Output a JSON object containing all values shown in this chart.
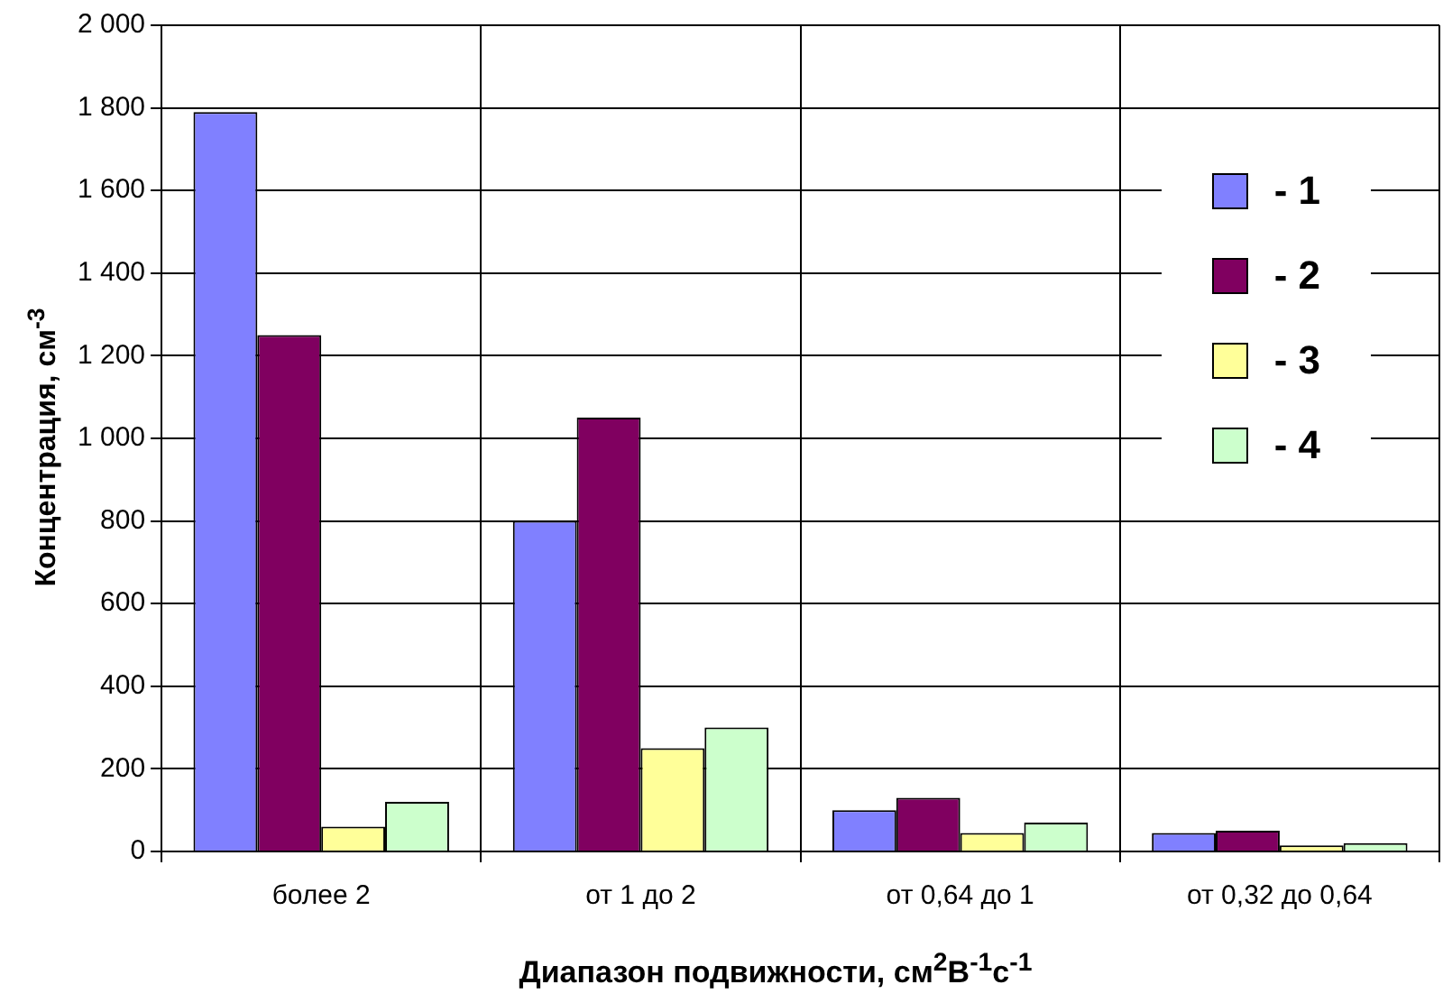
{
  "chart_data": {
    "type": "bar",
    "xlabel": "Диапазон подвижности, см$^{2}$В$^{-1}$с$^{-1}$",
    "ylabel": "Концентрация, см$^{-3}$",
    "categories": [
      "более 2",
      "от 1 до 2",
      "от 0,64 до 1",
      "от 0,32 до 0,64"
    ],
    "series": [
      {
        "name": "- 1",
        "color": "#8080ff",
        "values": [
          1790,
          800,
          100,
          45
        ]
      },
      {
        "name": "- 2",
        "color": "#800060",
        "values": [
          1250,
          1050,
          130,
          50
        ]
      },
      {
        "name": "- 3",
        "color": "#ffff99",
        "values": [
          60,
          250,
          45,
          15
        ]
      },
      {
        "name": "- 4",
        "color": "#ccffcc",
        "values": [
          120,
          300,
          70,
          20
        ]
      }
    ],
    "ylim": [
      0,
      2000
    ],
    "yticks": [
      0,
      200,
      400,
      600,
      800,
      {
        "value": 1000,
        "label": "1 000"
      },
      {
        "value": 1200,
        "label": "1 200"
      },
      {
        "value": 1400,
        "label": "1 400"
      },
      {
        "value": 1600,
        "label": "1 600"
      },
      {
        "value": 1800,
        "label": "1 800"
      },
      {
        "value": 2000,
        "label": "2 000"
      }
    ],
    "grid": true,
    "legend": "top right"
  }
}
